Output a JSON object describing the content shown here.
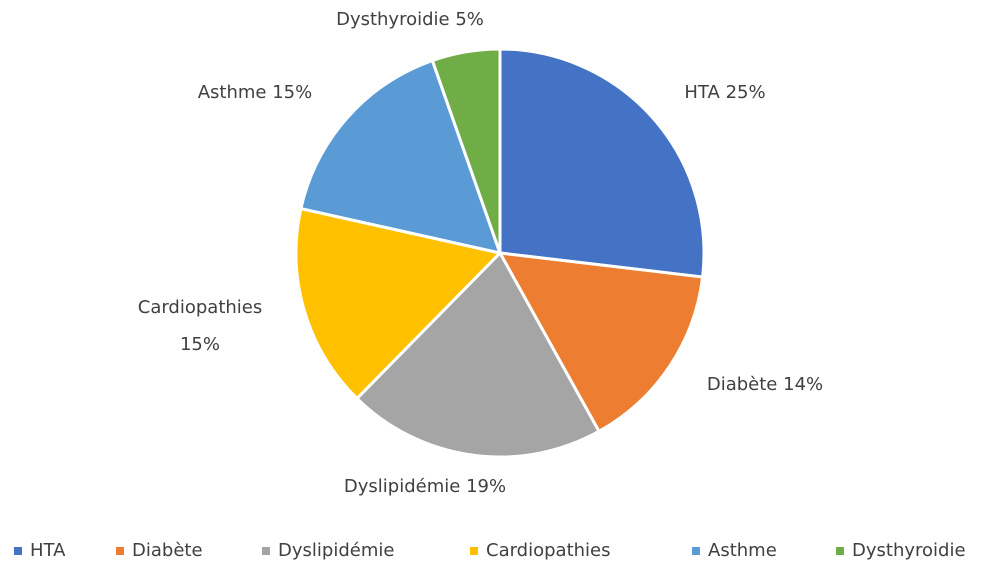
{
  "chart_data": {
    "type": "pie",
    "categories": [
      "HTA",
      "Diabète",
      "Dyslipidémie",
      "Cardiopathies",
      "Asthme",
      "Dysthyroidie"
    ],
    "values": [
      25,
      14,
      19,
      15,
      15,
      5
    ],
    "value_labels": [
      "25%",
      "14%",
      "19%",
      "15%",
      "15%",
      "5%"
    ],
    "colors": [
      "#4472c4",
      "#ed7d31",
      "#a5a5a5",
      "#ffc000",
      "#5b9bd5",
      "#70ad47"
    ],
    "legend": "bottom"
  }
}
